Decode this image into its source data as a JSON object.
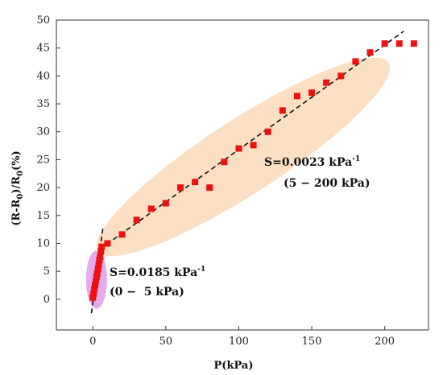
{
  "chart_data": {
    "type": "scatter",
    "xlabel": "P(kPa)",
    "ylabel_parts": [
      "(R-R",
      "0",
      ")/R",
      "0",
      "(%)"
    ],
    "xlim": [
      -25,
      230
    ],
    "ylim": [
      -5.5,
      50
    ],
    "xticks": [
      0,
      50,
      100,
      150,
      200
    ],
    "yticks": [
      0,
      5,
      10,
      15,
      20,
      25,
      30,
      35,
      40,
      45,
      50
    ],
    "grid": false,
    "series": [
      {
        "color": "#ee1111",
        "marker": "square",
        "x": [
          0,
          0.5,
          1,
          1.5,
          2,
          2.5,
          3,
          3.5,
          4,
          4.5,
          5,
          5.5,
          6,
          10,
          20,
          30,
          40,
          50,
          60,
          70,
          80,
          90,
          100,
          110,
          120,
          130,
          140,
          150,
          160,
          170,
          180,
          190,
          200,
          210,
          220
        ],
        "y": [
          0.3,
          1.0,
          1.8,
          2.5,
          3.2,
          4.0,
          4.6,
          5.4,
          6.2,
          7.0,
          7.6,
          8.6,
          9.4,
          10.0,
          11.6,
          14.2,
          16.2,
          17.2,
          20.0,
          21.0,
          20.0,
          24.6,
          27.0,
          27.6,
          30.0,
          33.8,
          36.4,
          37.0,
          38.8,
          40.0,
          42.6,
          44.2,
          45.8,
          45.8,
          45.8
        ]
      }
    ],
    "fit_lines": [
      {
        "color": "#111111",
        "style": "dashed",
        "x": [
          -1,
          7
        ],
        "y": [
          -2.5,
          13
        ]
      },
      {
        "color": "#111111",
        "style": "dashed",
        "x": [
          5,
          213
        ],
        "y": [
          9,
          48
        ]
      }
    ],
    "regions": [
      {
        "color": "#f5c08a",
        "opacity": 0.5,
        "cx": 103,
        "cy": 25.5,
        "rx": 130,
        "ry": 10,
        "angle_data_deg": 75.6
      },
      {
        "color": "#cc66dd",
        "opacity": 0.55,
        "cx": 2.5,
        "cy": 3.5,
        "rx": 11,
        "ry": 3.8,
        "angle_data_deg": 90
      }
    ],
    "annotations": [
      {
        "id": "high",
        "line1_base": "S=0.0023 kPa",
        "line1_sup": "-1",
        "line2": "(5 − 200 kPa)"
      },
      {
        "id": "low",
        "line1_base": "S=0.0185 kPa",
        "line1_sup": "-1",
        "line2": "(0 −  5 kPa)"
      }
    ]
  }
}
